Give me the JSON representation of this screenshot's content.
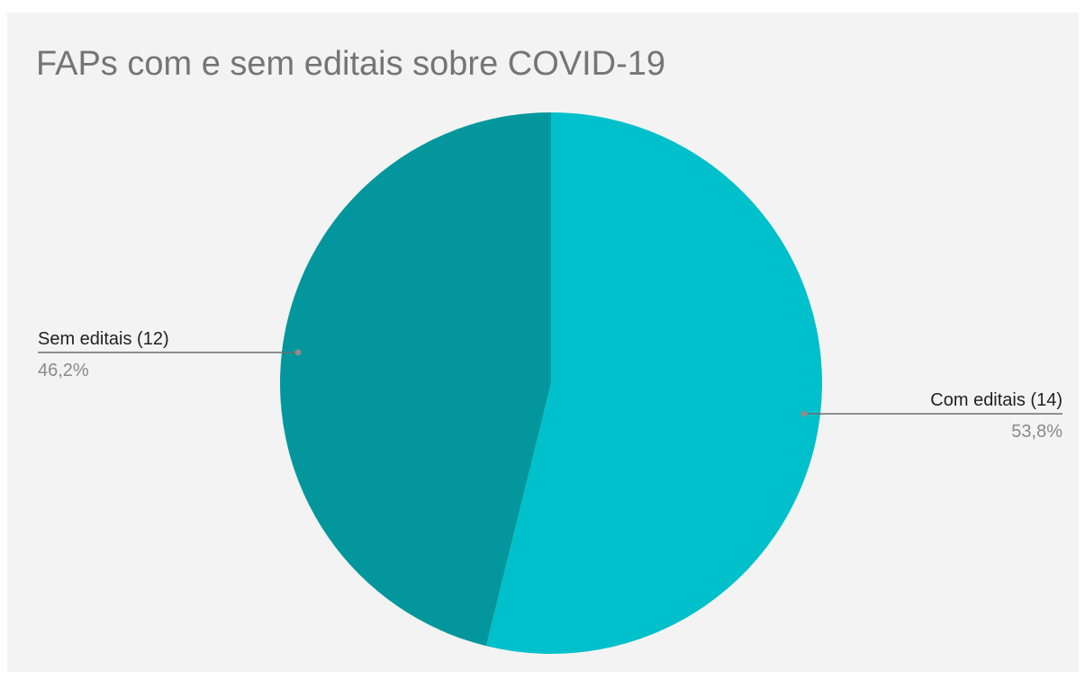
{
  "chart_data": {
    "type": "pie",
    "title": "FAPs com e sem editais sobre COVID-19",
    "slices": [
      {
        "label": "Com editais (14)",
        "category": "Com editais",
        "value": 14,
        "percent_label": "53,8%",
        "color": "#00c0cb"
      },
      {
        "label": "Sem editais (12)",
        "category": "Sem editais",
        "value": 12,
        "percent_label": "46,2%",
        "color": "#03979d"
      }
    ],
    "start_angle": "12 o'clock",
    "direction": "clockwise",
    "legend": "none",
    "background": "#f3f3f3"
  }
}
